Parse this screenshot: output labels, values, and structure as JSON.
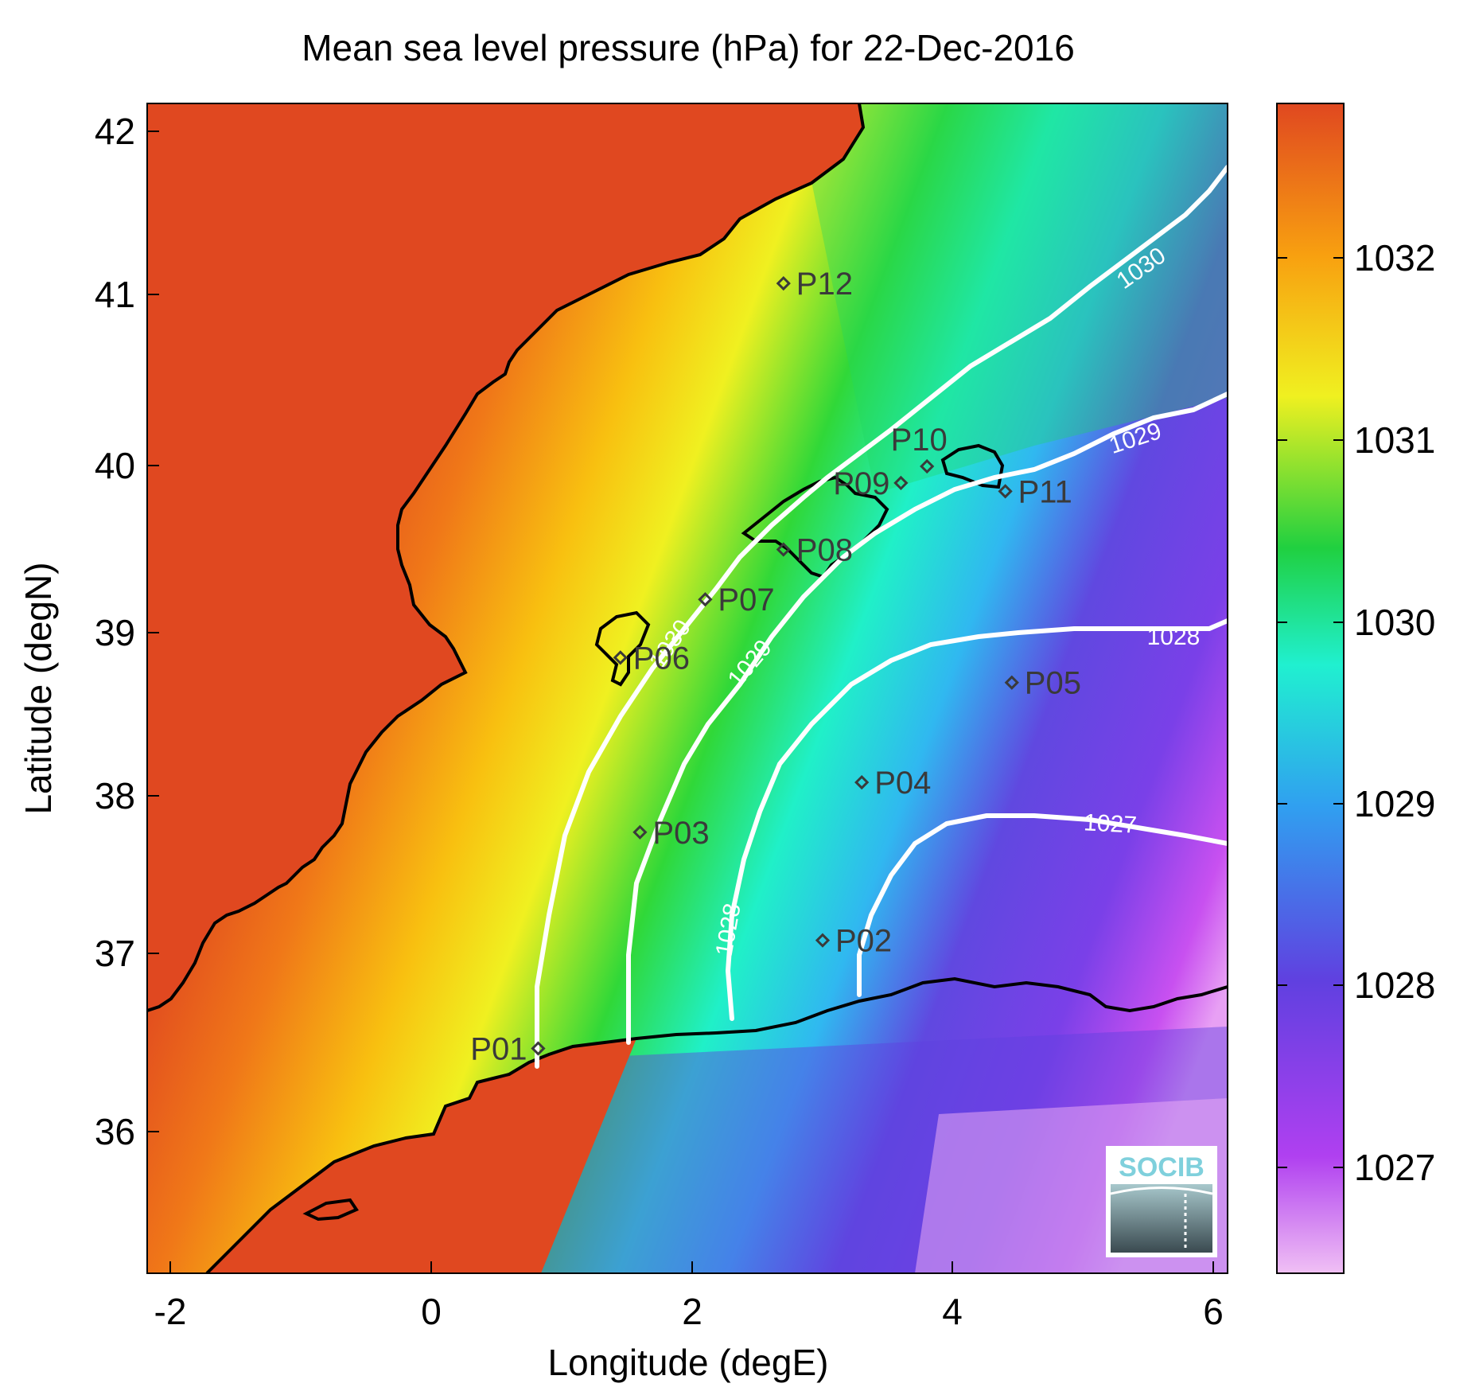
{
  "title": "Mean sea level pressure (hPa) for 22-Dec-2016",
  "xlabel": "Longitude (degE)",
  "ylabel": "Latitude (degN)",
  "x_ticks": [
    "-2",
    "0",
    "2",
    "4",
    "6"
  ],
  "y_ticks": [
    "36",
    "37",
    "38",
    "39",
    "40",
    "41",
    "42"
  ],
  "colorbar": {
    "ticks": [
      "1027",
      "1028",
      "1029",
      "1030",
      "1031",
      "1032"
    ],
    "colors": [
      "#f0c0f4",
      "#b040f0",
      "#6040e0",
      "#30a0f0",
      "#20f0d0",
      "#20d040",
      "#f0f020",
      "#f8a010",
      "#e04820"
    ]
  },
  "land_color": "#e04820",
  "contour_color": "#ffffff",
  "coast_color": "#000000",
  "contours": [
    {
      "label": "1030"
    },
    {
      "label": "1030"
    },
    {
      "label": "1029"
    },
    {
      "label": "1029"
    },
    {
      "label": "1028"
    },
    {
      "label": "1028"
    },
    {
      "label": "1027"
    }
  ],
  "stations": [
    {
      "label": "P01",
      "lon": 0.82,
      "lat": 36.5
    },
    {
      "label": "P02",
      "lon": 3.0,
      "lat": 37.15
    },
    {
      "label": "P03",
      "lon": 1.6,
      "lat": 37.8
    },
    {
      "label": "P04",
      "lon": 3.3,
      "lat": 38.1
    },
    {
      "label": "P05",
      "lon": 4.45,
      "lat": 38.7
    },
    {
      "label": "P06",
      "lon": 1.45,
      "lat": 38.85
    },
    {
      "label": "P07",
      "lon": 2.1,
      "lat": 39.2
    },
    {
      "label": "P08",
      "lon": 2.7,
      "lat": 39.5
    },
    {
      "label": "P09",
      "lon": 3.6,
      "lat": 39.9
    },
    {
      "label": "P10",
      "lon": 3.8,
      "lat": 40.0
    },
    {
      "label": "P11",
      "lon": 4.4,
      "lat": 39.85
    },
    {
      "label": "P12",
      "lon": 2.7,
      "lat": 41.1
    }
  ],
  "logo": {
    "text": "SOCIB"
  }
}
